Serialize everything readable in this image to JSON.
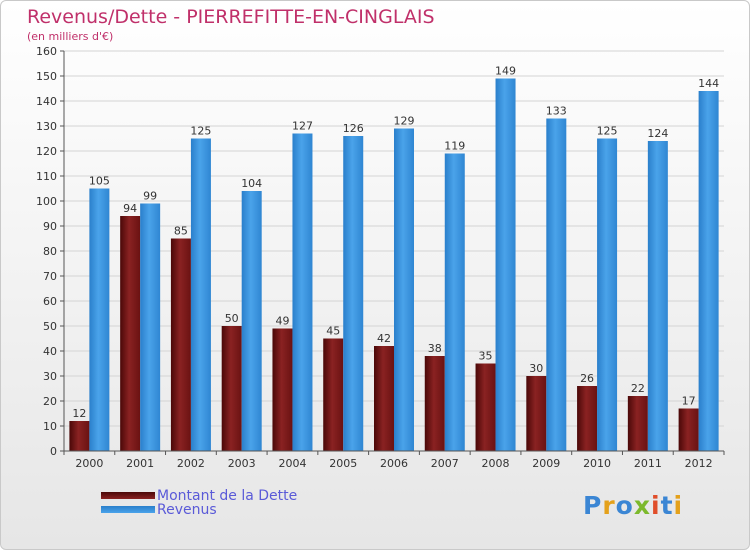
{
  "header": {
    "title": "Revenus/Dette - PIERREFITTE-EN-CINGLAIS",
    "subtitle": "(en milliers d'€)"
  },
  "logo": {
    "text": "Proxiti",
    "colors": [
      "#3b86d4",
      "#e4a11b",
      "#3b86d4",
      "#7cb92c",
      "#e04e2a",
      "#3b86d4",
      "#e4a11b"
    ]
  },
  "chart_data": {
    "type": "bar",
    "categories": [
      "2000",
      "2001",
      "2002",
      "2003",
      "2004",
      "2005",
      "2006",
      "2007",
      "2008",
      "2009",
      "2010",
      "2011",
      "2012"
    ],
    "series": [
      {
        "name": "Montant de la Dette",
        "color": "#7a1616",
        "values": [
          12,
          94,
          85,
          50,
          49,
          45,
          42,
          38,
          35,
          30,
          26,
          22,
          17
        ]
      },
      {
        "name": "Revenus",
        "color": "#3a8fd8",
        "values": [
          105,
          99,
          125,
          104,
          127,
          126,
          129,
          119,
          149,
          133,
          125,
          124,
          144
        ]
      }
    ],
    "ylim": [
      0,
      160
    ],
    "yticks": [
      0,
      10,
      20,
      30,
      40,
      50,
      60,
      70,
      80,
      90,
      100,
      110,
      120,
      130,
      140,
      150,
      160
    ],
    "grid": true,
    "legend_position": "bottom-left"
  }
}
